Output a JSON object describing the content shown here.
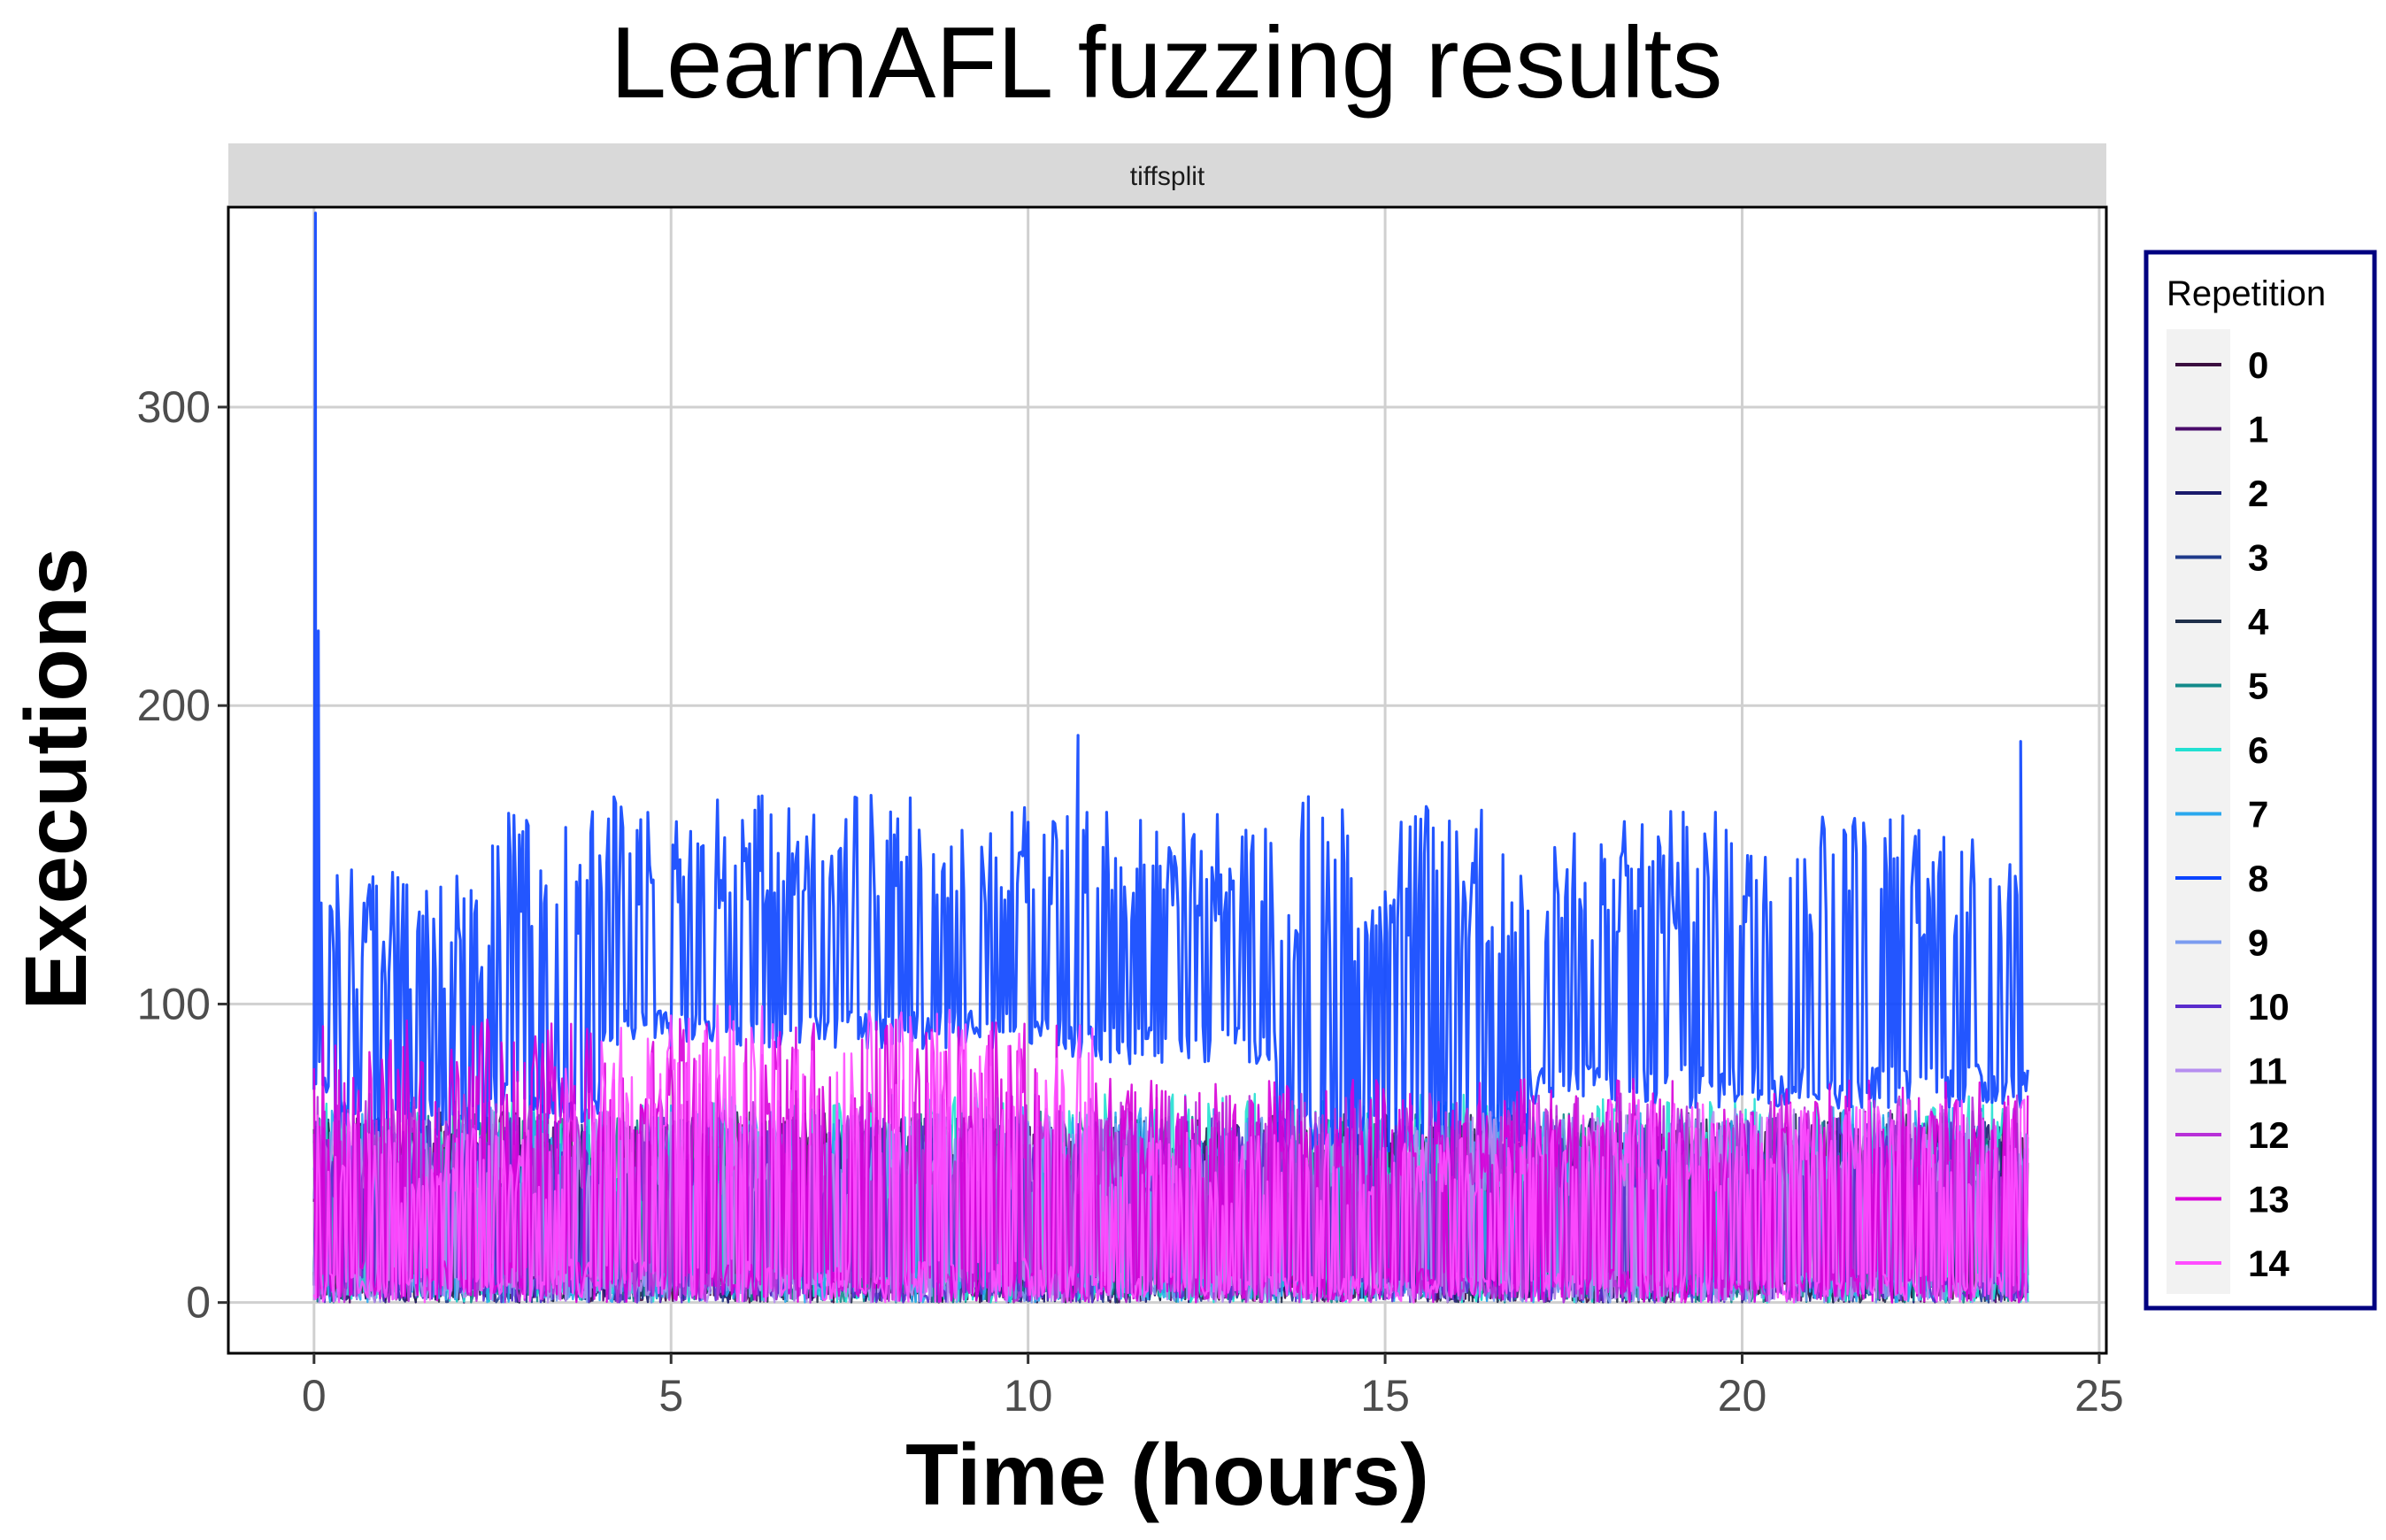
{
  "chart_data": {
    "type": "line",
    "title": "LearnAFL fuzzing results",
    "facet": "tiffsplit",
    "xlabel": "Time (hours)",
    "ylabel": "Executions",
    "xlim": [
      -1.2,
      25.1
    ],
    "ylim": [
      -17,
      367
    ],
    "x_ticks": [
      0,
      5,
      10,
      15,
      20,
      25
    ],
    "y_ticks": [
      0,
      100,
      200,
      300
    ],
    "grid": true,
    "legend": {
      "title": "Repetition",
      "position": "right",
      "border_color": "#000080"
    },
    "series": [
      {
        "name": "0",
        "color": "#3b0f40",
        "segments": [
          [
            0,
            24,
            0,
            58
          ]
        ]
      },
      {
        "name": "1",
        "color": "#4a0c6b",
        "segments": [
          [
            0,
            24,
            0,
            60
          ]
        ]
      },
      {
        "name": "2",
        "color": "#1b1a6b",
        "segments": [
          [
            0,
            24,
            0,
            62
          ]
        ]
      },
      {
        "name": "3",
        "color": "#1f3a8a",
        "segments": [
          [
            0,
            24,
            0,
            62
          ]
        ]
      },
      {
        "name": "4",
        "color": "#1f2f4a",
        "segments": [
          [
            0,
            24,
            0,
            64
          ]
        ]
      },
      {
        "name": "5",
        "color": "#138a8a",
        "segments": [
          [
            0,
            24,
            0,
            64
          ]
        ]
      },
      {
        "name": "6",
        "color": "#22e0d2",
        "segments": [
          [
            0,
            24,
            0,
            70
          ]
        ]
      },
      {
        "name": "7",
        "color": "#2aa8ee",
        "segments": [
          [
            0,
            24,
            0,
            66
          ]
        ]
      },
      {
        "name": "8",
        "color": "#0b44ff",
        "segments": [
          [
            0,
            0.3,
            70,
            150
          ],
          [
            0.3,
            2.5,
            55,
            145
          ],
          [
            2.5,
            4.0,
            60,
            165
          ],
          [
            4.0,
            10.5,
            85,
            170
          ],
          [
            10.5,
            13.5,
            80,
            165
          ],
          [
            13.5,
            17,
            45,
            170
          ],
          [
            17,
            24,
            65,
            165
          ]
        ],
        "peaks": [
          [
            0.02,
            365
          ],
          [
            0.06,
            225
          ],
          [
            10.7,
            190
          ],
          [
            23.9,
            188
          ]
        ]
      },
      {
        "name": "9",
        "color": "#7b9cf0",
        "segments": [
          [
            0,
            24,
            0,
            62
          ]
        ]
      },
      {
        "name": "10",
        "color": "#5a2ccc",
        "segments": [
          [
            0,
            24,
            0,
            62
          ]
        ]
      },
      {
        "name": "11",
        "color": "#b68ef0",
        "segments": [
          [
            0,
            24,
            0,
            65
          ]
        ]
      },
      {
        "name": "12",
        "color": "#b830d8",
        "segments": [
          [
            0,
            24,
            0,
            70
          ]
        ]
      },
      {
        "name": "13",
        "color": "#d800d8",
        "segments": [
          [
            0,
            10.5,
            0,
            95
          ],
          [
            10.5,
            24,
            0,
            75
          ]
        ]
      },
      {
        "name": "14",
        "color": "#ff4dff",
        "segments": [
          [
            0,
            0.5,
            0,
            72
          ],
          [
            0.5,
            3.5,
            0,
            60
          ],
          [
            3.5,
            11,
            0,
            100
          ],
          [
            11,
            17,
            0,
            58
          ],
          [
            17,
            24,
            0,
            68
          ]
        ]
      }
    ]
  }
}
